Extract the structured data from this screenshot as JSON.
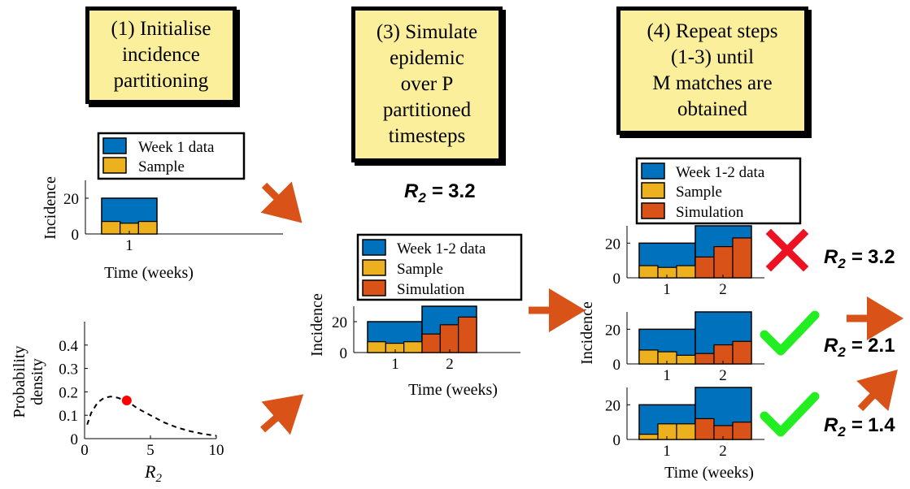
{
  "steps": [
    {
      "label": "(1)  Initialise\nincidence\npartitioning"
    },
    {
      "label": "(3)  Simulate\nepidemic\nover  P\npartitioned\ntimesteps"
    },
    {
      "label": "(4)  Repeat steps\n(1-3)  until\nM  matches  are\nobtained"
    }
  ],
  "legends": {
    "week1_data": "Week  1  data",
    "week12_data": "Week  1-2  data",
    "sample": "Sample",
    "simulation": "Simulation"
  },
  "axes": {
    "incidence": "Incidence",
    "time_weeks": "Time  (weeks)",
    "prob_line1": "Probability",
    "prob_line2": "density",
    "r2": "R",
    "r2_sub": "2"
  },
  "r2_values": {
    "center_title": "3.2",
    "row1": "3.2",
    "row2": "2.1",
    "row3": "1.4"
  },
  "equals": "=",
  "colors": {
    "data_blue": "#0072bd",
    "sample_yellow": "#edb120",
    "simulation_orange": "#d95319",
    "arrow_orange": "#d95319",
    "box_fill": "#fbef9c",
    "tick_green": "#22ee22",
    "cross_red": "#ee1122",
    "marker_red": "#ff0000"
  },
  "chart_data": [
    {
      "type": "bar",
      "panel": "step1-histogram",
      "xticks": [
        "1"
      ],
      "yticks": [
        "0",
        "20"
      ],
      "ylim": [
        0,
        30
      ],
      "week_data": [
        20
      ],
      "sample": [
        7,
        6,
        7
      ]
    },
    {
      "type": "line",
      "panel": "prior-density",
      "xticks": [
        "0",
        "5",
        "10"
      ],
      "yticks": [
        "0",
        "0.1",
        "0.2",
        "0.3",
        "0.4"
      ],
      "xlim": [
        0,
        10
      ],
      "ylim": [
        0,
        0.5
      ],
      "x": [
        0.2,
        0.5,
        1.0,
        1.5,
        2.0,
        2.5,
        3.0,
        3.5,
        4.0,
        5.0,
        6.0,
        7.0,
        8.0,
        9.0,
        10.0
      ],
      "y": [
        0.06,
        0.11,
        0.155,
        0.175,
        0.18,
        0.175,
        0.165,
        0.15,
        0.13,
        0.1,
        0.07,
        0.048,
        0.032,
        0.02,
        0.012
      ],
      "marker": {
        "x": 3.2,
        "y": 0.163
      }
    },
    {
      "type": "bar",
      "panel": "step3-simulation",
      "xticks": [
        "1",
        "2"
      ],
      "yticks": [
        "0",
        "20"
      ],
      "ylim": [
        0,
        30
      ],
      "week_data": [
        20,
        30
      ],
      "sample": [
        7,
        6,
        7
      ],
      "simulation": [
        12,
        18,
        23
      ]
    },
    {
      "type": "bar",
      "panel": "step4-row1",
      "outcome": "reject",
      "xticks": [
        "1",
        "2"
      ],
      "yticks": [
        "0",
        "20"
      ],
      "ylim": [
        0,
        30
      ],
      "week_data": [
        20,
        30
      ],
      "sample": [
        7,
        6,
        7
      ],
      "simulation": [
        12,
        18,
        23
      ]
    },
    {
      "type": "bar",
      "panel": "step4-row2",
      "outcome": "accept",
      "xticks": [
        "1",
        "2"
      ],
      "yticks": [
        "0",
        "20"
      ],
      "ylim": [
        0,
        30
      ],
      "week_data": [
        20,
        30
      ],
      "sample": [
        8,
        7,
        5
      ],
      "simulation": [
        6,
        11,
        13
      ]
    },
    {
      "type": "bar",
      "panel": "step4-row3",
      "outcome": "accept",
      "xticks": [
        "1",
        "2"
      ],
      "yticks": [
        "0",
        "20"
      ],
      "ylim": [
        0,
        30
      ],
      "week_data": [
        20,
        30
      ],
      "sample": [
        3,
        9,
        9
      ],
      "simulation": [
        12,
        8,
        10
      ]
    }
  ]
}
